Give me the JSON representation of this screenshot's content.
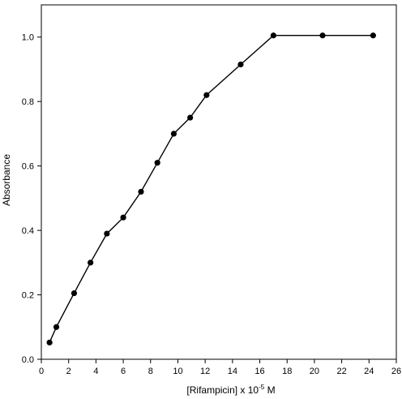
{
  "chart_data": {
    "type": "line",
    "xlabel": "[Rifampicin] x 10",
    "xlabel_exponent": "-5",
    "xlabel_unit": " M",
    "ylabel": "Absorbance",
    "xlim": [
      0,
      26
    ],
    "ylim": [
      0,
      1.1
    ],
    "x_ticks": [
      "0",
      "2",
      "4",
      "6",
      "8",
      "10",
      "12",
      "14",
      "16",
      "18",
      "20",
      "22",
      "24",
      "26"
    ],
    "y_ticks": [
      "0.0",
      "0.2",
      "0.4",
      "0.6",
      "0.8",
      "1.0"
    ],
    "marker": "filled-circle",
    "color": "#000000",
    "grid": false,
    "series": [
      {
        "x": [
          0.6,
          1.1,
          2.4,
          3.6,
          4.8,
          6.0,
          7.3,
          8.5,
          9.7,
          10.9,
          12.1,
          14.6,
          17.0,
          20.6,
          24.3
        ],
        "values": [
          0.052,
          0.1,
          0.205,
          0.3,
          0.39,
          0.44,
          0.52,
          0.61,
          0.7,
          0.75,
          0.82,
          0.915,
          1.005,
          1.005,
          1.005
        ]
      }
    ]
  }
}
